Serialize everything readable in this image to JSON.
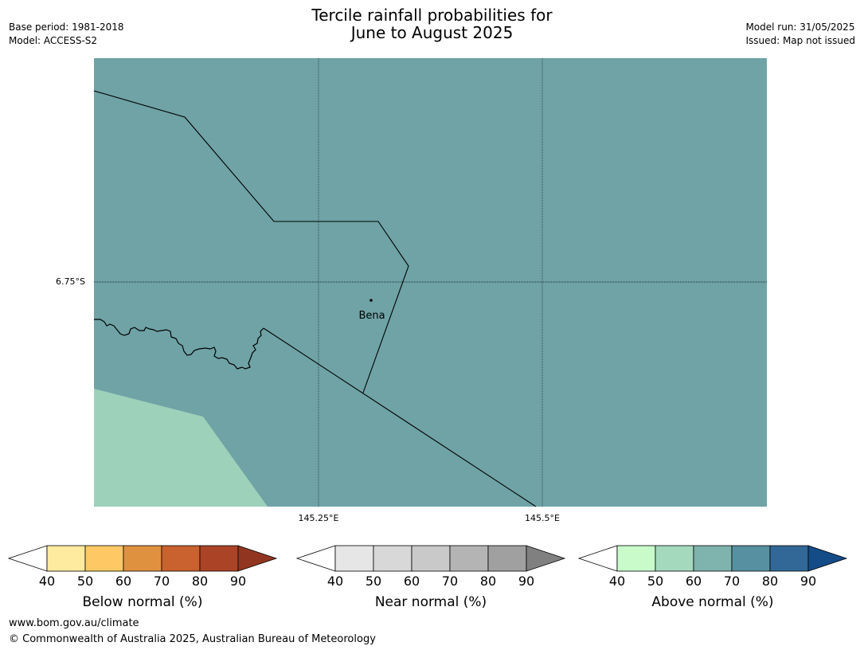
{
  "header": {
    "title_line1": "Tercile rainfall probabilities for",
    "title_line2": "June to August 2025",
    "base_period": "Base period: 1981-2018",
    "model": "Model: ACCESS-S2",
    "model_run": "Model run: 31/05/2025",
    "issued": "Issued: Map not issued"
  },
  "map": {
    "background_color": "#6fa3a6",
    "lower_left_zone_color": "#9ed1b9",
    "lat_label": "6.75°S",
    "lon_labels": [
      "145.25°E",
      "145.5°E"
    ],
    "place": {
      "name": "Bena"
    },
    "gridlines": "dotted"
  },
  "legends": [
    {
      "title": "Below normal (%)",
      "ticks": [
        "40",
        "50",
        "60",
        "70",
        "80",
        "90"
      ],
      "colors": [
        "#ffffff",
        "#feeb9f",
        "#fec965",
        "#e0913f",
        "#c9622f",
        "#ab4426",
        "#923520"
      ]
    },
    {
      "title": "Near normal (%)",
      "ticks": [
        "40",
        "50",
        "60",
        "70",
        "80",
        "90"
      ],
      "colors": [
        "#ffffff",
        "#e6e6e6",
        "#d8d8d8",
        "#c9c9c9",
        "#b4b4b4",
        "#a0a0a0",
        "#808080"
      ]
    },
    {
      "title": "Above normal (%)",
      "ticks": [
        "40",
        "50",
        "60",
        "70",
        "80",
        "90"
      ],
      "colors": [
        "#ffffff",
        "#c9fbca",
        "#a4d9bd",
        "#7fb3ad",
        "#5790a0",
        "#316897",
        "#144c88"
      ]
    }
  ],
  "footer": {
    "url": "www.bom.gov.au/climate",
    "copyright": "© Commonwealth of Australia 2025, Australian Bureau of Meteorology"
  }
}
